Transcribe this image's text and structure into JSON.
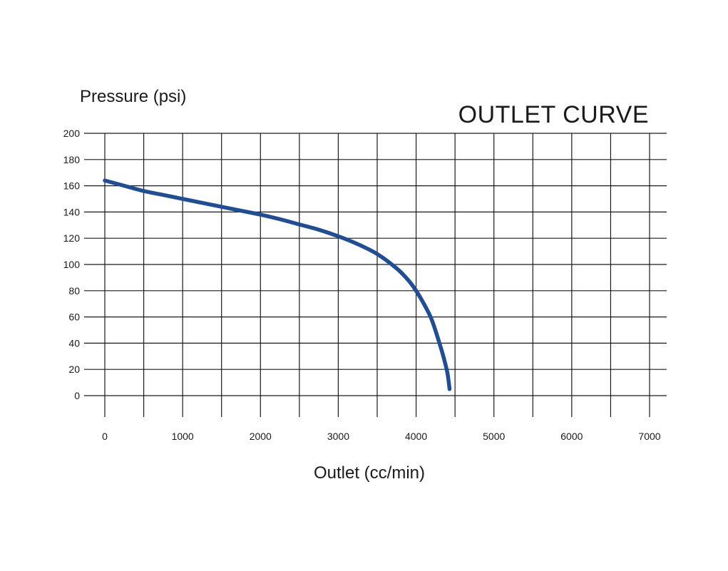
{
  "chart_data": {
    "type": "line",
    "title": "OUTLET CURVE",
    "xlabel": "Outlet (cc/min)",
    "ylabel": "Pressure (psi)",
    "xlim": [
      0,
      7000
    ],
    "ylim": [
      0,
      200
    ],
    "x_ticks": [
      0,
      1000,
      2000,
      3000,
      4000,
      5000,
      6000,
      7000
    ],
    "y_ticks": [
      0,
      20,
      40,
      60,
      80,
      100,
      120,
      140,
      160,
      180,
      200
    ],
    "x_grid_step": 500,
    "y_grid_step": 20,
    "grid": true,
    "legend": "none",
    "series": [
      {
        "color": "#1f4e96",
        "x": [
          0,
          250,
          500,
          750,
          1000,
          1250,
          1500,
          1750,
          2000,
          2250,
          2500,
          2750,
          3000,
          3250,
          3500,
          3750,
          3900,
          4000,
          4100,
          4200,
          4300,
          4350,
          4400,
          4420,
          4430
        ],
        "y": [
          164,
          160,
          156,
          153,
          150,
          147,
          144,
          141,
          138,
          134.5,
          130.5,
          126.5,
          121.5,
          115.5,
          108,
          97,
          88,
          80,
          70,
          58,
          40,
          30,
          18,
          10,
          5
        ]
      }
    ]
  }
}
